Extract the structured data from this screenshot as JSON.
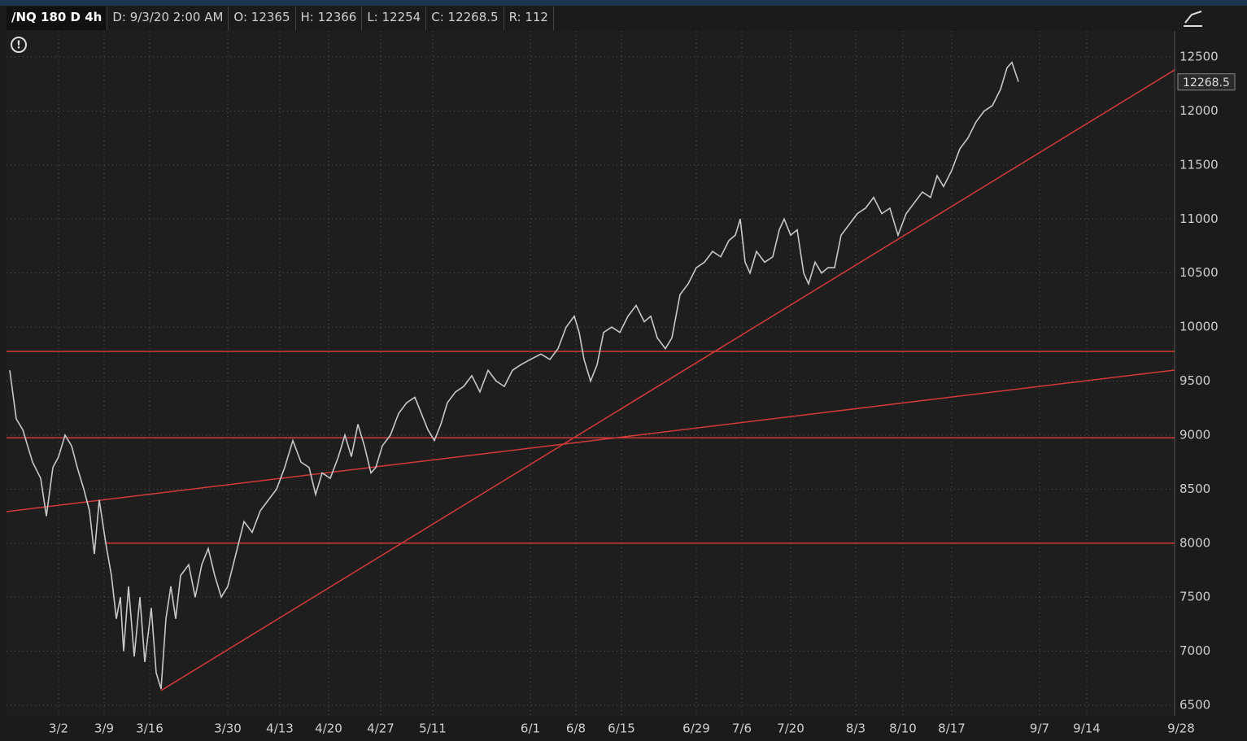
{
  "header": {
    "symbol": "/NQ 180 D 4h",
    "date": "D: 9/3/20 2:00 AM",
    "open": "O: 12365",
    "high": "H: 12366",
    "low": "L: 12254",
    "close": "C: 12268.5",
    "range": "R: 112"
  },
  "chart_data": {
    "type": "line",
    "x": [
      2,
      6,
      10,
      16,
      21,
      24.5,
      28.5,
      32,
      36,
      40,
      43.5,
      47.5,
      51,
      54,
      57,
      61,
      64.5,
      67.5,
      70,
      72,
      75,
      78.5,
      82,
      85,
      89,
      92,
      95,
      98,
      101,
      104,
      107,
      112,
      116,
      120,
      124,
      128,
      132,
      136,
      141,
      146,
      151,
      156,
      161,
      166,
      171,
      176,
      181,
      186,
      190,
      194,
      199,
      204,
      208,
      212,
      216,
      220,
      224,
      227,
      231,
      236,
      241,
      246,
      251,
      255,
      259,
      263,
      267,
      271,
      276,
      281,
      286,
      291,
      296,
      301,
      306,
      311,
      316,
      322,
      328.5,
      334,
      339,
      344,
      349,
      352,
      355,
      359,
      363,
      367,
      372,
      377,
      382,
      387,
      392,
      396,
      400,
      405,
      409,
      414,
      419,
      424,
      429,
      434,
      439,
      444,
      448,
      451,
      454,
      457,
      461,
      466,
      471,
      475,
      478,
      482,
      486,
      490,
      493,
      497,
      501,
      505,
      509,
      513,
      518,
      523,
      528,
      533,
      538,
      543,
      548,
      553,
      558,
      563,
      568,
      572,
      576,
      581,
      586,
      591,
      596,
      601,
      606,
      611,
      615,
      618,
      622
    ],
    "series": [
      {
        "name": "/NQ",
        "color": "#c8c8c8",
        "values": [
          9600,
          9150,
          9050,
          8750,
          8600,
          8250,
          8700,
          8800,
          9000,
          8900,
          8700,
          8500,
          8300,
          7900,
          8400,
          8000,
          7700,
          7300,
          7500,
          7000,
          7600,
          6950,
          7500,
          6900,
          7400,
          6800,
          6650,
          7300,
          7600,
          7300,
          7700,
          7800,
          7500,
          7800,
          7950,
          7700,
          7500,
          7600,
          7900,
          8200,
          8100,
          8300,
          8400,
          8500,
          8700,
          8950,
          8750,
          8700,
          8450,
          8650,
          8600,
          8800,
          9000,
          8800,
          9100,
          8900,
          8650,
          8700,
          8900,
          9000,
          9200,
          9300,
          9350,
          9200,
          9050,
          8950,
          9100,
          9300,
          9400,
          9450,
          9550,
          9400,
          9600,
          9500,
          9450,
          9600,
          9650,
          9700,
          9750,
          9700,
          9800,
          10000,
          10100,
          9950,
          9700,
          9500,
          9650,
          9950,
          10000,
          9950,
          10100,
          10200,
          10050,
          10100,
          9900,
          9800,
          9900,
          10300,
          10400,
          10550,
          10600,
          10700,
          10650,
          10800,
          10850,
          11000,
          10600,
          10500,
          10700,
          10600,
          10650,
          10900,
          11000,
          10850,
          10900,
          10500,
          10400,
          10600,
          10500,
          10550,
          10550,
          10850,
          10950,
          11050,
          11100,
          11200,
          11050,
          11100,
          10850,
          11050,
          11150,
          11250,
          11200,
          11400,
          11300,
          11450,
          11650,
          11750,
          11900,
          12000,
          12050,
          12200,
          12400,
          12450,
          12270
        ]
      }
    ],
    "last_price": 12268.5,
    "lines": [
      {
        "color": "#d43a3a",
        "x": [
          0,
          718
        ],
        "y": [
          9775,
          9775
        ]
      },
      {
        "color": "#d43a3a",
        "x": [
          0,
          718
        ],
        "y": [
          8975,
          8975
        ]
      },
      {
        "color": "#d43a3a",
        "x": [
          61,
          718
        ],
        "y": [
          8000,
          8000
        ]
      },
      {
        "color": "#d43a3a",
        "x": [
          95,
          718
        ],
        "y": [
          6636,
          12380
        ]
      },
      {
        "color": "#d43a3a",
        "x": [
          0,
          718
        ],
        "y": [
          8292,
          9602
        ]
      }
    ],
    "xlim": [
      0,
      718
    ],
    "xticks": [
      {
        "value": 32,
        "label": "3/2"
      },
      {
        "value": 60,
        "label": "3/9"
      },
      {
        "value": 88,
        "label": "3/16"
      },
      {
        "value": 136,
        "label": "3/30"
      },
      {
        "value": 168,
        "label": "4/13"
      },
      {
        "value": 198,
        "label": "4/20"
      },
      {
        "value": 230,
        "label": "4/27"
      },
      {
        "value": 262,
        "label": "5/11"
      },
      {
        "value": 322,
        "label": "6/1"
      },
      {
        "value": 350,
        "label": "6/8"
      },
      {
        "value": 378,
        "label": "6/15"
      },
      {
        "value": 424,
        "label": "6/29"
      },
      {
        "value": 452,
        "label": "7/6"
      },
      {
        "value": 482,
        "label": "7/20"
      },
      {
        "value": 522,
        "label": "8/3"
      },
      {
        "value": 551,
        "label": "8/10"
      },
      {
        "value": 581,
        "label": "8/17"
      },
      {
        "value": 635,
        "label": "9/7"
      },
      {
        "value": 664,
        "label": "9/14"
      },
      {
        "value": 722,
        "label": "9/28"
      }
    ],
    "ylim": [
      6500,
      12500
    ],
    "yticks": [
      6500,
      7000,
      7500,
      8000,
      8500,
      9000,
      9500,
      10000,
      10500,
      11000,
      11500,
      12000,
      12500
    ],
    "grid": true
  }
}
